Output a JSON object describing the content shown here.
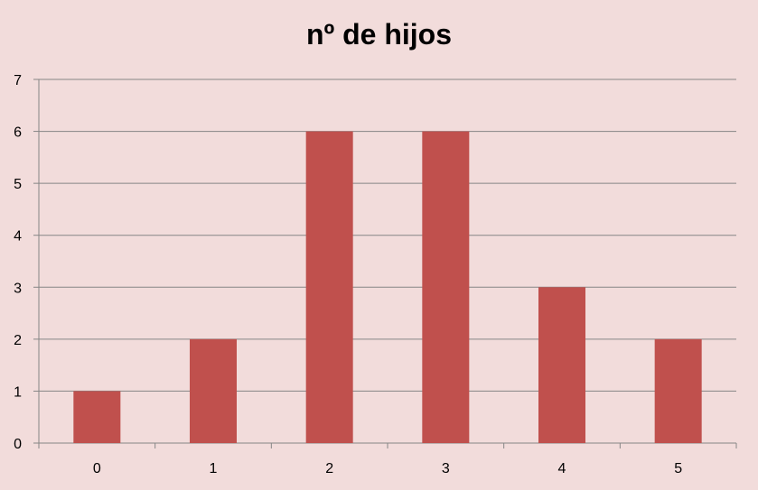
{
  "chart_data": {
    "type": "bar",
    "title": "nº de hijos",
    "categories": [
      "0",
      "1",
      "2",
      "3",
      "4",
      "5"
    ],
    "values": [
      1,
      2,
      6,
      6,
      3,
      2
    ],
    "xlabel": "",
    "ylabel": "",
    "ylim": [
      0,
      7
    ],
    "yticks": [
      "0",
      "1",
      "2",
      "3",
      "4",
      "5",
      "6",
      "7"
    ],
    "grid": true,
    "legend": "none",
    "colors": {
      "bar": "#c0504d",
      "background": "#f2dcdb",
      "grid": "#868686"
    }
  }
}
